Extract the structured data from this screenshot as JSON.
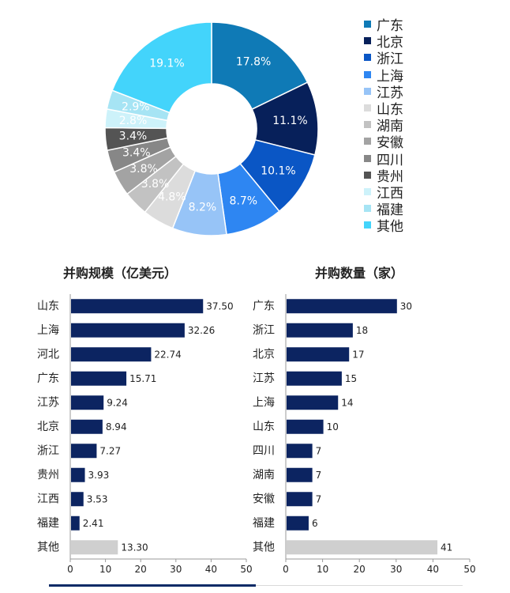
{
  "colors": {
    "navy": "#0c2461",
    "gray_bar": "#cfcfcf",
    "label_text": "#222222"
  },
  "chart_data": [
    {
      "type": "pie",
      "variant": "donut",
      "categories": [
        "广东",
        "北京",
        "浙江",
        "上海",
        "江苏",
        "山东",
        "湖南",
        "安徽",
        "四川",
        "贵州",
        "江西",
        "福建",
        "其他"
      ],
      "values": [
        17.8,
        11.1,
        10.1,
        8.7,
        8.2,
        4.8,
        3.8,
        3.8,
        3.4,
        3.4,
        2.8,
        2.9,
        19.1
      ],
      "labels": [
        "17.8%",
        "11.1%",
        "10.1%",
        "8.7%",
        "8.2%",
        "4.8%",
        "3.8%",
        "3.8%",
        "3.4%",
        "3.4%",
        "2.8%",
        "2.9%",
        "19.1%"
      ],
      "colors": [
        "#0f7ab6",
        "#07205a",
        "#0a56c5",
        "#2e86f2",
        "#97c4f7",
        "#dcdcdc",
        "#c2c2c2",
        "#a3a3a3",
        "#878787",
        "#545454",
        "#cdf2fa",
        "#a6e4f4",
        "#43d4fb"
      ],
      "legend": "right"
    },
    {
      "type": "bar",
      "orientation": "horizontal",
      "title": "并购规模（亿美元）",
      "categories": [
        "山东",
        "上海",
        "河北",
        "广东",
        "江苏",
        "北京",
        "浙江",
        "贵州",
        "江西",
        "福建",
        "其他"
      ],
      "values": [
        37.5,
        32.26,
        22.74,
        15.71,
        9.24,
        8.94,
        7.27,
        3.93,
        3.53,
        2.41,
        13.3
      ],
      "value_labels": [
        "37.50",
        "32.26",
        "22.74",
        "15.71",
        "9.24",
        "8.94",
        "7.27",
        "3.93",
        "3.53",
        "2.41",
        "13.30"
      ],
      "highlight_last": true,
      "xlim": [
        0,
        50
      ],
      "xticks": [
        "0",
        "10",
        "20",
        "30",
        "40",
        "50"
      ]
    },
    {
      "type": "bar",
      "orientation": "horizontal",
      "title": "并购数量（家）",
      "categories": [
        "广东",
        "浙江",
        "北京",
        "江苏",
        "上海",
        "山东",
        "四川",
        "湖南",
        "安徽",
        "福建",
        "其他"
      ],
      "values": [
        30,
        18,
        17,
        15,
        14,
        10,
        7,
        7,
        7,
        6,
        41
      ],
      "value_labels": [
        "30",
        "18",
        "17",
        "15",
        "14",
        "10",
        "7",
        "7",
        "7",
        "6",
        "41"
      ],
      "highlight_last": true,
      "xlim": [
        0,
        50
      ],
      "xticks": [
        "0",
        "10",
        "20",
        "30",
        "40",
        "50"
      ]
    }
  ]
}
